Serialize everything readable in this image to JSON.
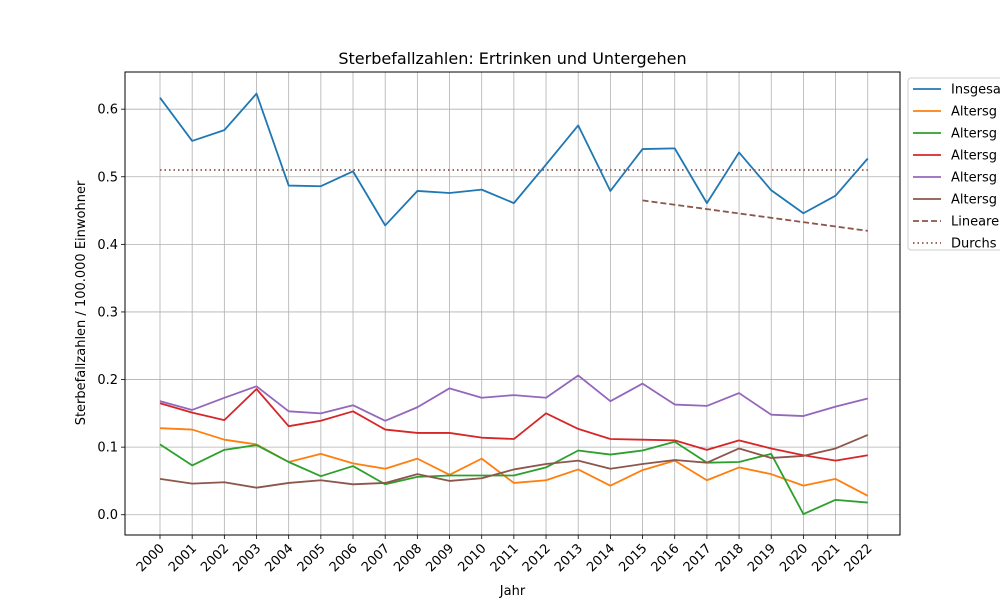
{
  "chart_data": {
    "type": "line",
    "title": "Sterbefallzahlen: Ertrinken und Untergehen",
    "xlabel": "Jahr",
    "ylabel": "Sterbefallzahlen / 100.000 Einwohner",
    "ylim": [
      -0.03,
      0.655
    ],
    "yticks": [
      0.0,
      0.1,
      0.2,
      0.3,
      0.4,
      0.5,
      0.6
    ],
    "ytick_labels": [
      "0.0",
      "0.1",
      "0.2",
      "0.3",
      "0.4",
      "0.5",
      "0.6"
    ],
    "grid": true,
    "legend_position": "upper-right-outside",
    "x": [
      "2000",
      "2001",
      "2002",
      "2003",
      "2004",
      "2005",
      "2006",
      "2007",
      "2008",
      "2009",
      "2010",
      "2011",
      "2012",
      "2013",
      "2014",
      "2015",
      "2016",
      "2017",
      "2018",
      "2019",
      "2020",
      "2021",
      "2022"
    ],
    "series": [
      {
        "name": "Insgesa",
        "color": "#1f77b4",
        "style": "solid",
        "values": [
          0.617,
          0.553,
          0.569,
          0.623,
          0.487,
          0.486,
          0.508,
          0.428,
          0.479,
          0.476,
          0.481,
          0.461,
          0.518,
          0.576,
          0.479,
          0.541,
          0.542,
          0.461,
          0.536,
          0.48,
          0.446,
          0.472,
          0.527
        ]
      },
      {
        "name": "Altersg",
        "color": "#ff7f0e",
        "style": "solid",
        "values": [
          0.128,
          0.126,
          0.111,
          0.104,
          0.078,
          0.09,
          0.076,
          0.068,
          0.083,
          0.059,
          0.083,
          0.047,
          0.051,
          0.067,
          0.043,
          0.066,
          0.08,
          0.051,
          0.07,
          0.06,
          0.043,
          0.053,
          0.028
        ]
      },
      {
        "name": "Altersg",
        "color": "#2ca02c",
        "style": "solid",
        "values": [
          0.104,
          0.073,
          0.096,
          0.103,
          0.078,
          0.057,
          0.072,
          0.045,
          0.056,
          0.058,
          0.058,
          0.058,
          0.07,
          0.095,
          0.089,
          0.095,
          0.108,
          0.077,
          0.078,
          0.09,
          0.001,
          0.022,
          0.018
        ]
      },
      {
        "name": "Altersg",
        "color": "#d62728",
        "style": "solid",
        "values": [
          0.165,
          0.151,
          0.14,
          0.186,
          0.131,
          0.139,
          0.153,
          0.126,
          0.121,
          0.121,
          0.114,
          0.112,
          0.15,
          0.127,
          0.112,
          0.111,
          0.11,
          0.096,
          0.11,
          0.098,
          0.088,
          0.08,
          0.088
        ]
      },
      {
        "name": "Altersg",
        "color": "#9467bd",
        "style": "solid",
        "values": [
          0.168,
          0.155,
          0.173,
          0.19,
          0.153,
          0.15,
          0.162,
          0.139,
          0.159,
          0.187,
          0.173,
          0.177,
          0.173,
          0.206,
          0.168,
          0.194,
          0.163,
          0.161,
          0.18,
          0.148,
          0.146,
          0.16,
          0.172
        ]
      },
      {
        "name": "Altersg",
        "color": "#8c564b",
        "style": "solid",
        "values": [
          0.053,
          0.046,
          0.048,
          0.04,
          0.047,
          0.051,
          0.045,
          0.047,
          0.06,
          0.05,
          0.054,
          0.067,
          0.075,
          0.08,
          0.068,
          0.075,
          0.081,
          0.077,
          0.098,
          0.084,
          0.087,
          0.098,
          0.118
        ]
      },
      {
        "name": "Lineare",
        "color": "#8c564b",
        "style": "dashed",
        "x": [
          "2015",
          "2022"
        ],
        "values": [
          0.465,
          0.42
        ]
      },
      {
        "name": "Durchs",
        "color": "#8c564b",
        "style": "dotted",
        "x": [
          "2000",
          "2022"
        ],
        "values": [
          0.51,
          0.51
        ]
      }
    ]
  }
}
